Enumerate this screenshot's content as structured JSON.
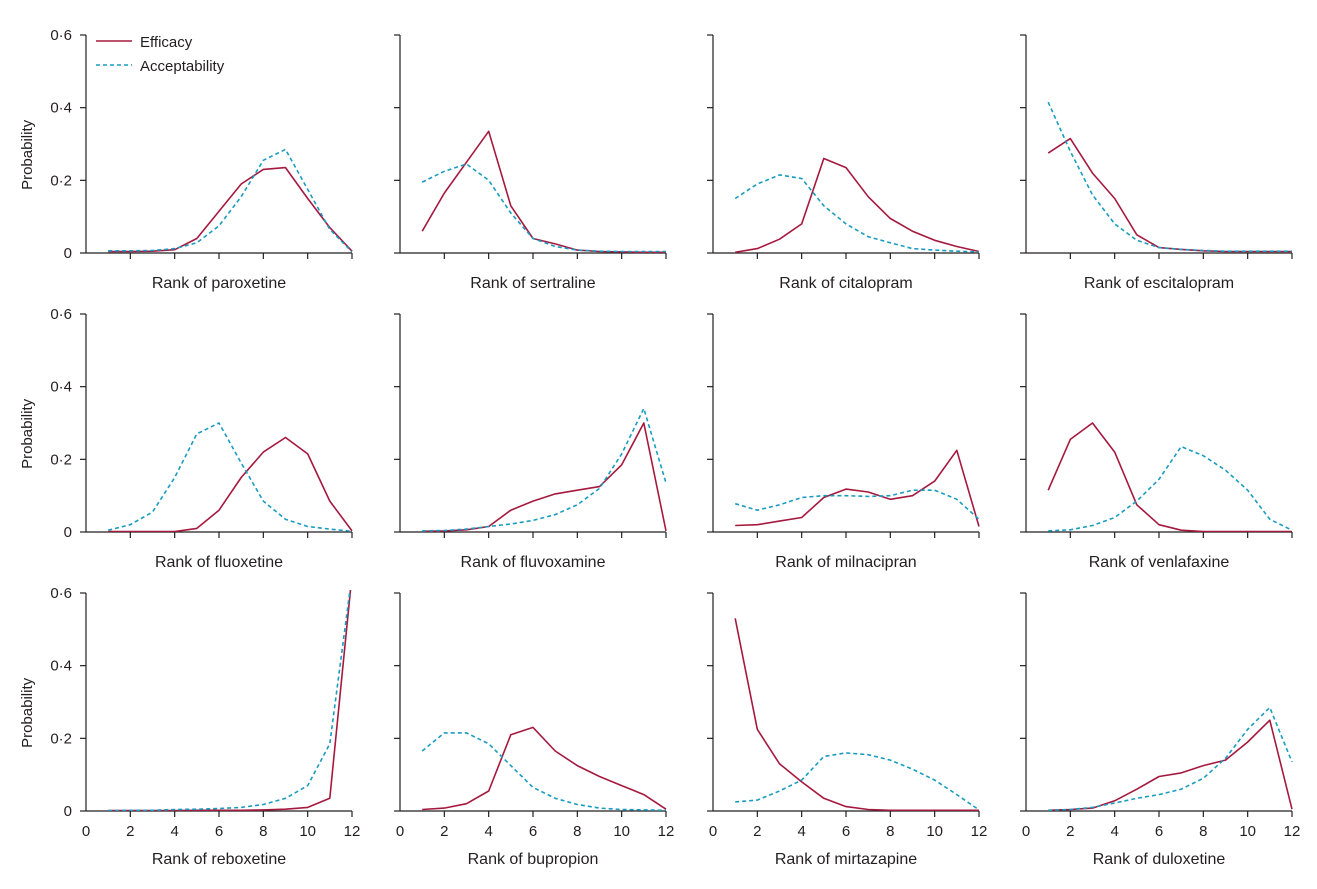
{
  "colors": {
    "efficacy": "#a6193f",
    "acceptability": "#1a9cc0",
    "axis": "#231f20"
  },
  "legend": {
    "efficacy_label": "Efficacy",
    "acceptability_label": "Acceptability"
  },
  "chart_data": [
    {
      "type": "line",
      "xlabel": "Rank of paroxetine",
      "ylabel": "Probability",
      "xlim": [
        0,
        12
      ],
      "ylim": [
        0,
        0.6
      ],
      "x": [
        1,
        2,
        3,
        4,
        5,
        6,
        7,
        8,
        9,
        10,
        11,
        12
      ],
      "series": [
        {
          "name": "Efficacy",
          "values": [
            0.004,
            0.004,
            0.005,
            0.009,
            0.04,
            0.115,
            0.19,
            0.23,
            0.235,
            0.15,
            0.07,
            0.005
          ]
        },
        {
          "name": "Acceptability",
          "values": [
            0.006,
            0.006,
            0.007,
            0.012,
            0.028,
            0.075,
            0.155,
            0.255,
            0.285,
            0.175,
            0.065,
            0.003
          ]
        }
      ]
    },
    {
      "type": "line",
      "xlabel": "Rank of sertraline",
      "ylabel": "",
      "xlim": [
        0,
        12
      ],
      "ylim": [
        0,
        0.6
      ],
      "x": [
        1,
        2,
        3,
        4,
        5,
        6,
        7,
        8,
        9,
        10,
        11,
        12
      ],
      "series": [
        {
          "name": "Efficacy",
          "values": [
            0.06,
            0.165,
            0.25,
            0.335,
            0.13,
            0.04,
            0.025,
            0.008,
            0.004,
            0.003,
            0.002,
            0.002
          ]
        },
        {
          "name": "Acceptability",
          "values": [
            0.195,
            0.225,
            0.245,
            0.2,
            0.11,
            0.04,
            0.018,
            0.008,
            0.005,
            0.004,
            0.004,
            0.004
          ]
        }
      ]
    },
    {
      "type": "line",
      "xlabel": "Rank of citalopram",
      "ylabel": "",
      "xlim": [
        0,
        12
      ],
      "ylim": [
        0,
        0.6
      ],
      "x": [
        1,
        2,
        3,
        4,
        5,
        6,
        7,
        8,
        9,
        10,
        11,
        12
      ],
      "series": [
        {
          "name": "Efficacy",
          "values": [
            0.002,
            0.012,
            0.038,
            0.08,
            0.26,
            0.235,
            0.155,
            0.095,
            0.06,
            0.035,
            0.018,
            0.004
          ]
        },
        {
          "name": "Acceptability",
          "values": [
            0.15,
            0.19,
            0.215,
            0.205,
            0.13,
            0.08,
            0.045,
            0.028,
            0.012,
            0.008,
            0.005,
            0.003
          ]
        }
      ]
    },
    {
      "type": "line",
      "xlabel": "Rank of escitalopram",
      "ylabel": "",
      "xlim": [
        0,
        12
      ],
      "ylim": [
        0,
        0.6
      ],
      "x": [
        1,
        2,
        3,
        4,
        5,
        6,
        7,
        8,
        9,
        10,
        11,
        12
      ],
      "series": [
        {
          "name": "Efficacy",
          "values": [
            0.275,
            0.315,
            0.22,
            0.15,
            0.05,
            0.015,
            0.01,
            0.006,
            0.004,
            0.004,
            0.004,
            0.004
          ]
        },
        {
          "name": "Acceptability",
          "values": [
            0.415,
            0.28,
            0.16,
            0.08,
            0.035,
            0.015,
            0.01,
            0.007,
            0.005,
            0.005,
            0.005,
            0.005
          ]
        }
      ]
    },
    {
      "type": "line",
      "xlabel": "Rank of fluoxetine",
      "ylabel": "Probability",
      "xlim": [
        0,
        12
      ],
      "ylim": [
        0,
        0.6
      ],
      "x": [
        1,
        2,
        3,
        4,
        5,
        6,
        7,
        8,
        9,
        10,
        11,
        12
      ],
      "series": [
        {
          "name": "Efficacy",
          "values": [
            0.001,
            0.001,
            0.001,
            0.001,
            0.01,
            0.06,
            0.15,
            0.22,
            0.26,
            0.215,
            0.085,
            0.003
          ]
        },
        {
          "name": "Acceptability",
          "values": [
            0.005,
            0.02,
            0.055,
            0.15,
            0.27,
            0.3,
            0.19,
            0.085,
            0.035,
            0.015,
            0.008,
            0.002
          ]
        }
      ]
    },
    {
      "type": "line",
      "xlabel": "Rank of fluvoxamine",
      "ylabel": "",
      "xlim": [
        0,
        12
      ],
      "ylim": [
        0,
        0.6
      ],
      "x": [
        1,
        2,
        3,
        4,
        5,
        6,
        7,
        8,
        9,
        10,
        11,
        12
      ],
      "series": [
        {
          "name": "Efficacy",
          "values": [
            0.002,
            0.003,
            0.006,
            0.015,
            0.06,
            0.085,
            0.105,
            0.115,
            0.125,
            0.185,
            0.3,
            0.003
          ]
        },
        {
          "name": "Acceptability",
          "values": [
            0.003,
            0.004,
            0.008,
            0.015,
            0.022,
            0.032,
            0.048,
            0.075,
            0.12,
            0.215,
            0.34,
            0.135
          ]
        }
      ]
    },
    {
      "type": "line",
      "xlabel": "Rank of milnacipran",
      "ylabel": "",
      "xlim": [
        0,
        12
      ],
      "ylim": [
        0,
        0.6
      ],
      "x": [
        1,
        2,
        3,
        4,
        5,
        6,
        7,
        8,
        9,
        10,
        11,
        12
      ],
      "series": [
        {
          "name": "Efficacy",
          "values": [
            0.018,
            0.02,
            0.03,
            0.04,
            0.095,
            0.118,
            0.11,
            0.09,
            0.1,
            0.14,
            0.225,
            0.015
          ]
        },
        {
          "name": "Acceptability",
          "values": [
            0.078,
            0.06,
            0.075,
            0.095,
            0.1,
            0.1,
            0.098,
            0.1,
            0.115,
            0.115,
            0.09,
            0.035
          ]
        }
      ]
    },
    {
      "type": "line",
      "xlabel": "Rank of venlafaxine",
      "ylabel": "",
      "xlim": [
        0,
        12
      ],
      "ylim": [
        0,
        0.6
      ],
      "x": [
        1,
        2,
        3,
        4,
        5,
        6,
        7,
        8,
        9,
        10,
        11,
        12
      ],
      "series": [
        {
          "name": "Efficacy",
          "values": [
            0.115,
            0.255,
            0.3,
            0.22,
            0.075,
            0.02,
            0.005,
            0.001,
            0.001,
            0.001,
            0.001,
            0.001
          ]
        },
        {
          "name": "Acceptability",
          "values": [
            0.003,
            0.006,
            0.018,
            0.04,
            0.085,
            0.145,
            0.235,
            0.21,
            0.17,
            0.115,
            0.035,
            0.005
          ]
        }
      ]
    },
    {
      "type": "line",
      "xlabel": "Rank of reboxetine",
      "ylabel": "Probability",
      "xlim": [
        0,
        12
      ],
      "ylim": [
        0,
        0.6
      ],
      "x": [
        1,
        2,
        3,
        4,
        5,
        6,
        7,
        8,
        9,
        10,
        11,
        12
      ],
      "series": [
        {
          "name": "Efficacy",
          "values": [
            0.001,
            0.001,
            0.001,
            0.001,
            0.002,
            0.002,
            0.002,
            0.003,
            0.005,
            0.01,
            0.035,
            0.65
          ]
        },
        {
          "name": "Acceptability",
          "values": [
            0.001,
            0.002,
            0.002,
            0.004,
            0.005,
            0.007,
            0.01,
            0.018,
            0.035,
            0.07,
            0.185,
            0.65
          ]
        }
      ]
    },
    {
      "type": "line",
      "xlabel": "Rank of bupropion",
      "ylabel": "",
      "xlim": [
        0,
        12
      ],
      "ylim": [
        0,
        0.6
      ],
      "x": [
        1,
        2,
        3,
        4,
        5,
        6,
        7,
        8,
        9,
        10,
        11,
        12
      ],
      "series": [
        {
          "name": "Efficacy",
          "values": [
            0.004,
            0.008,
            0.02,
            0.055,
            0.21,
            0.23,
            0.165,
            0.125,
            0.095,
            0.07,
            0.045,
            0.005
          ]
        },
        {
          "name": "Acceptability",
          "values": [
            0.165,
            0.215,
            0.215,
            0.185,
            0.125,
            0.065,
            0.035,
            0.018,
            0.008,
            0.004,
            0.003,
            0.002
          ]
        }
      ]
    },
    {
      "type": "line",
      "xlabel": "Rank of mirtazapine",
      "ylabel": "",
      "xlim": [
        0,
        12
      ],
      "ylim": [
        0,
        0.6
      ],
      "x": [
        1,
        2,
        3,
        4,
        5,
        6,
        7,
        8,
        9,
        10,
        11,
        12
      ],
      "series": [
        {
          "name": "Efficacy",
          "values": [
            0.53,
            0.225,
            0.13,
            0.08,
            0.035,
            0.012,
            0.004,
            0.002,
            0.002,
            0.002,
            0.002,
            0.002
          ]
        },
        {
          "name": "Acceptability",
          "values": [
            0.025,
            0.03,
            0.055,
            0.085,
            0.15,
            0.16,
            0.155,
            0.14,
            0.115,
            0.085,
            0.045,
            0.003
          ]
        }
      ]
    },
    {
      "type": "line",
      "xlabel": "Rank of duloxetine",
      "ylabel": "",
      "xlim": [
        0,
        12
      ],
      "ylim": [
        0,
        0.6
      ],
      "x": [
        1,
        2,
        3,
        4,
        5,
        6,
        7,
        8,
        9,
        10,
        11,
        12
      ],
      "series": [
        {
          "name": "Efficacy",
          "values": [
            0.002,
            0.004,
            0.008,
            0.028,
            0.06,
            0.095,
            0.105,
            0.125,
            0.14,
            0.19,
            0.25,
            0.005
          ]
        },
        {
          "name": "Acceptability",
          "values": [
            0.002,
            0.004,
            0.01,
            0.022,
            0.035,
            0.045,
            0.06,
            0.09,
            0.145,
            0.225,
            0.285,
            0.135
          ]
        }
      ]
    }
  ]
}
